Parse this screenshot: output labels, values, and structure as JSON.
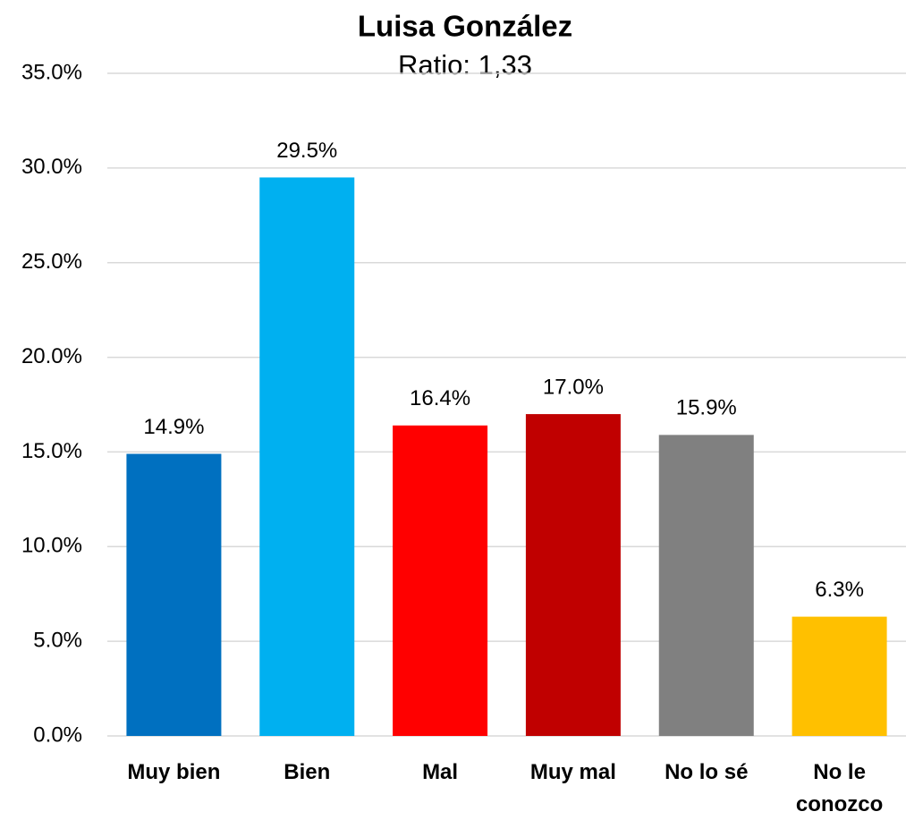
{
  "chart_data": {
    "type": "bar",
    "title": "Luisa González",
    "subtitle": "Ratio: 1,33",
    "categories": [
      "Muy bien",
      "Bien",
      "Mal",
      "Muy mal",
      "No lo sé",
      "No le conozco"
    ],
    "values": [
      14.9,
      29.5,
      16.4,
      17.0,
      15.9,
      6.3
    ],
    "value_labels": [
      "14.9%",
      "29.5%",
      "16.4%",
      "17.0%",
      "15.9%",
      "6.3%"
    ],
    "colors": [
      "#0070C0",
      "#00B0F0",
      "#FF0000",
      "#C00000",
      "#808080",
      "#FFC000"
    ],
    "ylim": [
      0,
      35
    ],
    "yticks": [
      {
        "value": 0,
        "label": "0.0%"
      },
      {
        "value": 5,
        "label": "5.0%"
      },
      {
        "value": 10,
        "label": "10.0%"
      },
      {
        "value": 15,
        "label": "15.0%"
      },
      {
        "value": 20,
        "label": "20.0%"
      },
      {
        "value": 25,
        "label": "25.0%"
      },
      {
        "value": 30,
        "label": "30.0%"
      },
      {
        "value": 35,
        "label": "35.0%"
      }
    ],
    "grid": true
  }
}
